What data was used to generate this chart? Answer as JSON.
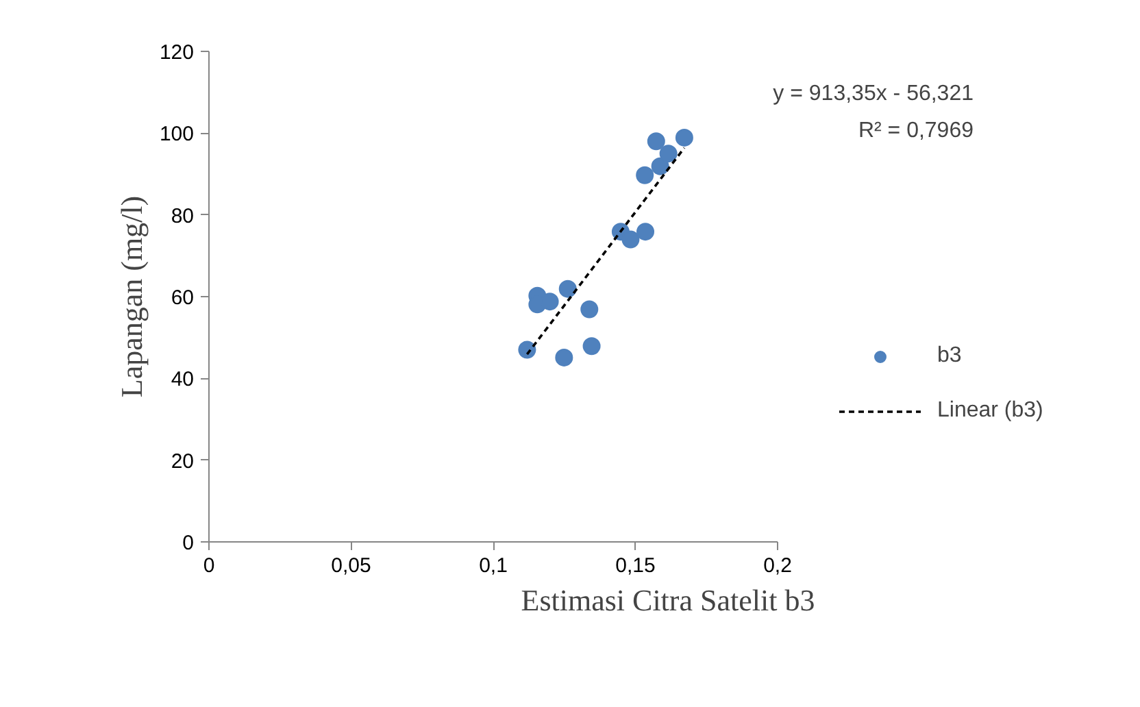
{
  "chart_data": {
    "type": "scatter",
    "xlabel": "Estimasi Citra Satelit b3",
    "ylabel": "Lapangan (mg/l)",
    "xlim": [
      0,
      0.2
    ],
    "xticks": [
      {
        "value": 0,
        "label": "0"
      },
      {
        "value": 0.05,
        "label": "0,05"
      },
      {
        "value": 0.1,
        "label": "0,1"
      },
      {
        "value": 0.15,
        "label": "0,15"
      },
      {
        "value": 0.2,
        "label": "0,2"
      }
    ],
    "ylim": [
      0,
      120
    ],
    "yticks": [
      0,
      20,
      40,
      60,
      80,
      100,
      120
    ],
    "grid": false,
    "legend": "right",
    "marker": "circle",
    "annotations": [
      "y = 913,35x - 56,321",
      "R² = 0,7969"
    ],
    "series": [
      {
        "name": "b3",
        "color": "#4f81bd",
        "x": [
          0.1119,
          0.1249,
          0.1346,
          0.1338,
          0.1262,
          0.1155,
          0.1155,
          0.1199,
          0.1448,
          0.1483,
          0.1535,
          0.1533,
          0.1587,
          0.1616,
          0.1573,
          0.1672
        ],
        "values": [
          47.0,
          45.1,
          47.9,
          56.9,
          61.9,
          60.2,
          58.1,
          58.8,
          75.9,
          74.0,
          75.9,
          89.7,
          91.9,
          95.0,
          98.0,
          98.9
        ]
      },
      {
        "name": "Linear (b3)",
        "type": "line",
        "line_style": "dashed",
        "marker": "none",
        "color": "#000000",
        "x": [
          0.1119,
          0.1672
        ],
        "values": [
          45.9,
          96.4
        ]
      }
    ]
  }
}
